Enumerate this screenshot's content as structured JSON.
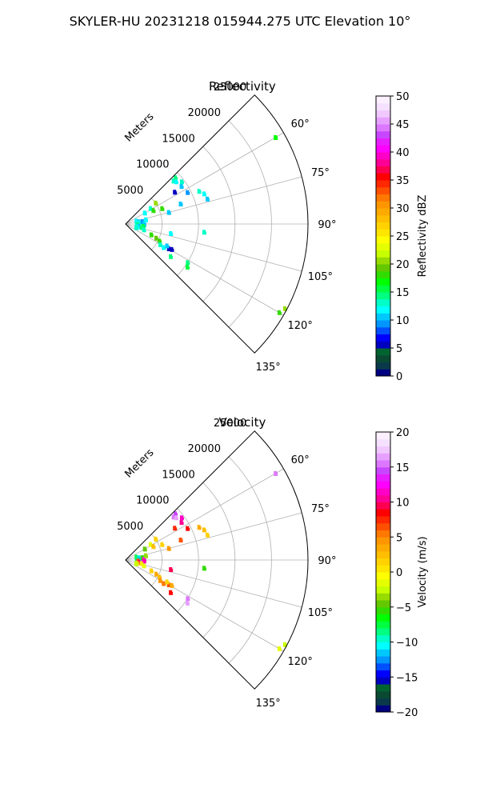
{
  "figure": {
    "suptitle": "SKYLER-HU  20231218  015944.275 UTC Elevation 10°"
  },
  "chart_data": [
    {
      "type": "scatter",
      "title": "Reflectivity",
      "range_label": "Meters",
      "radial_ticks": [
        "5000",
        "10000",
        "15000",
        "20000",
        "25000"
      ],
      "radial_values": [
        5000,
        10000,
        15000,
        20000,
        25000
      ],
      "angle_ticks": [
        "60°",
        "75°",
        "90°",
        "105°",
        "120°",
        "135°"
      ],
      "angle_values": [
        60,
        75,
        90,
        105,
        120,
        135
      ],
      "angle_range": [
        45,
        135
      ],
      "rmax": 25000,
      "grid": true,
      "colorbar": {
        "label": "Reflectivity dBZ",
        "ticks": [
          "0",
          "5",
          "10",
          "15",
          "20",
          "25",
          "30",
          "35",
          "40",
          "45",
          "50"
        ],
        "range": [
          0,
          50
        ],
        "bands": 40,
        "colors": [
          "#000080",
          "#0a3a4a",
          "#0a4a32",
          "#006430",
          "#0000c0",
          "#0000ff",
          "#0050ff",
          "#0096ff",
          "#00c8ff",
          "#00ffff",
          "#00ffc8",
          "#00ff80",
          "#00ff40",
          "#00ff00",
          "#32dc00",
          "#64c800",
          "#96dc00",
          "#c8ff00",
          "#e6ff00",
          "#ffff00",
          "#ffe600",
          "#ffd200",
          "#ffbe00",
          "#ffaa00",
          "#ff9600",
          "#ff7800",
          "#ff5000",
          "#ff2800",
          "#ff0000",
          "#ff0050",
          "#ff0096",
          "#ff00c8",
          "#ff00ff",
          "#e61eff",
          "#c846ff",
          "#dc78ff",
          "#e6a0ff",
          "#f0c8ff",
          "#f5e1ff",
          "#fbf0ff"
        ]
      },
      "points": [
        {
          "az": 58,
          "r": 4000,
          "v": 13
        },
        {
          "az": 60,
          "r": 3000,
          "v": 12
        },
        {
          "az": 55,
          "r": 5000,
          "v": 20
        },
        {
          "az": 48,
          "r": 8800,
          "v": 13
        },
        {
          "az": 47,
          "r": 9300,
          "v": 14
        },
        {
          "az": 50,
          "r": 9000,
          "v": 12
        },
        {
          "az": 53,
          "r": 9600,
          "v": 13
        },
        {
          "az": 56,
          "r": 9200,
          "v": 11
        },
        {
          "az": 57,
          "r": 8000,
          "v": 5
        },
        {
          "az": 63,
          "r": 9500,
          "v": 9
        },
        {
          "az": 66,
          "r": 11000,
          "v": 13
        },
        {
          "az": 70,
          "r": 8000,
          "v": 10
        },
        {
          "az": 69,
          "r": 11500,
          "v": 12
        },
        {
          "az": 73,
          "r": 11700,
          "v": 11
        },
        {
          "az": 60,
          "r": 23700,
          "v": 17
        },
        {
          "az": 64,
          "r": 4200,
          "v": 18
        },
        {
          "az": 67,
          "r": 5400,
          "v": 18
        },
        {
          "az": 75,
          "r": 6100,
          "v": 11
        },
        {
          "az": 96,
          "r": 10800,
          "v": 13
        },
        {
          "az": 75,
          "r": 1500,
          "v": 12
        },
        {
          "az": 80,
          "r": 1800,
          "v": 11
        },
        {
          "az": 85,
          "r": 1800,
          "v": 12
        },
        {
          "az": 90,
          "r": 1500,
          "v": 13
        },
        {
          "az": 95,
          "r": 1700,
          "v": 14
        },
        {
          "az": 100,
          "r": 1800,
          "v": 11
        },
        {
          "az": 105,
          "r": 1600,
          "v": 12
        },
        {
          "az": 110,
          "r": 1500,
          "v": 13
        },
        {
          "az": 82,
          "r": 2300,
          "v": 9
        },
        {
          "az": 88,
          "r": 2500,
          "v": 10
        },
        {
          "az": 93,
          "r": 2500,
          "v": 11
        },
        {
          "az": 98,
          "r": 2400,
          "v": 15
        },
        {
          "az": 103,
          "r": 2200,
          "v": 14
        },
        {
          "az": 78,
          "r": 2800,
          "v": 12
        },
        {
          "az": 108,
          "r": 2600,
          "v": 13
        },
        {
          "az": 113,
          "r": 3800,
          "v": 18
        },
        {
          "az": 115,
          "r": 4600,
          "v": 19
        },
        {
          "az": 117,
          "r": 5200,
          "v": 18
        },
        {
          "az": 121,
          "r": 5500,
          "v": 13
        },
        {
          "az": 122,
          "r": 6100,
          "v": 12
        },
        {
          "az": 120,
          "r": 6800,
          "v": 5
        },
        {
          "az": 119,
          "r": 7200,
          "v": 6
        },
        {
          "az": 118,
          "r": 6400,
          "v": 11
        },
        {
          "az": 126,
          "r": 7600,
          "v": 14
        },
        {
          "az": 122,
          "r": 10000,
          "v": 14
        },
        {
          "az": 125,
          "r": 10300,
          "v": 15
        },
        {
          "az": 118,
          "r": 24700,
          "v": 20
        },
        {
          "az": 120,
          "r": 24300,
          "v": 18
        },
        {
          "az": 102,
          "r": 6300,
          "v": 12
        }
      ]
    },
    {
      "type": "scatter",
      "title": "Velocity",
      "range_label": "Meters",
      "radial_ticks": [
        "5000",
        "10000",
        "15000",
        "20000",
        "25000"
      ],
      "radial_values": [
        5000,
        10000,
        15000,
        20000,
        25000
      ],
      "angle_ticks": [
        "60°",
        "75°",
        "90°",
        "105°",
        "120°",
        "135°"
      ],
      "angle_values": [
        60,
        75,
        90,
        105,
        120,
        135
      ],
      "angle_range": [
        45,
        135
      ],
      "rmax": 25000,
      "grid": true,
      "colorbar": {
        "label": "Velocity (m/s)",
        "ticks": [
          "−20",
          "−15",
          "−10",
          "−5",
          "0",
          "5",
          "10",
          "15",
          "20"
        ],
        "range": [
          -20,
          20
        ],
        "bands": 40,
        "colors": [
          "#000080",
          "#0a3a4a",
          "#0a4a32",
          "#006430",
          "#0000c0",
          "#0000ff",
          "#0050ff",
          "#0096ff",
          "#00c8ff",
          "#00ffff",
          "#00ffc8",
          "#00ff80",
          "#00ff40",
          "#00ff00",
          "#32dc00",
          "#64c800",
          "#96dc00",
          "#c8ff00",
          "#e6ff00",
          "#ffff00",
          "#ffe600",
          "#ffd200",
          "#ffbe00",
          "#ffaa00",
          "#ff9600",
          "#ff7800",
          "#ff5000",
          "#ff2800",
          "#ff0000",
          "#ff0050",
          "#ff0096",
          "#ff00c8",
          "#ff00ff",
          "#e61eff",
          "#c846ff",
          "#dc78ff",
          "#e6a0ff",
          "#f0c8ff",
          "#f5e1ff",
          "#fbf0ff"
        ]
      },
      "points": [
        {
          "az": 58,
          "r": 4000,
          "v": -2
        },
        {
          "az": 60,
          "r": 3000,
          "v": -5
        },
        {
          "az": 55,
          "r": 5000,
          "v": 1
        },
        {
          "az": 48,
          "r": 8800,
          "v": 15
        },
        {
          "az": 47,
          "r": 9300,
          "v": 14
        },
        {
          "az": 50,
          "r": 9000,
          "v": 16
        },
        {
          "az": 53,
          "r": 9600,
          "v": 11
        },
        {
          "az": 56,
          "r": 9200,
          "v": 10
        },
        {
          "az": 57,
          "r": 8000,
          "v": 7
        },
        {
          "az": 63,
          "r": 9500,
          "v": 8
        },
        {
          "az": 66,
          "r": 11000,
          "v": 3
        },
        {
          "az": 70,
          "r": 8000,
          "v": 6
        },
        {
          "az": 69,
          "r": 11500,
          "v": 2
        },
        {
          "az": 73,
          "r": 11700,
          "v": 1
        },
        {
          "az": 60,
          "r": 23700,
          "v": 15
        },
        {
          "az": 64,
          "r": 4200,
          "v": 2
        },
        {
          "az": 67,
          "r": 5400,
          "v": 1
        },
        {
          "az": 75,
          "r": 6100,
          "v": 4
        },
        {
          "az": 96,
          "r": 10800,
          "v": -6
        },
        {
          "az": 75,
          "r": 1500,
          "v": -8
        },
        {
          "az": 80,
          "r": 1800,
          "v": -10
        },
        {
          "az": 85,
          "r": 1800,
          "v": -12
        },
        {
          "az": 90,
          "r": 1500,
          "v": -9
        },
        {
          "az": 95,
          "r": 1700,
          "v": 6
        },
        {
          "az": 100,
          "r": 1800,
          "v": 9
        },
        {
          "az": 105,
          "r": 1600,
          "v": 2
        },
        {
          "az": 110,
          "r": 1500,
          "v": -3
        },
        {
          "az": 82,
          "r": 2300,
          "v": -6
        },
        {
          "az": 88,
          "r": 2500,
          "v": 12
        },
        {
          "az": 93,
          "r": 2500,
          "v": 10
        },
        {
          "az": 98,
          "r": 2400,
          "v": 11
        },
        {
          "az": 103,
          "r": 2200,
          "v": 0
        },
        {
          "az": 78,
          "r": 2800,
          "v": -4
        },
        {
          "az": 108,
          "r": 2600,
          "v": -2
        },
        {
          "az": 113,
          "r": 3800,
          "v": 1
        },
        {
          "az": 115,
          "r": 4600,
          "v": 3
        },
        {
          "az": 117,
          "r": 5200,
          "v": 2
        },
        {
          "az": 121,
          "r": 5500,
          "v": 4
        },
        {
          "az": 122,
          "r": 6100,
          "v": 5
        },
        {
          "az": 120,
          "r": 6800,
          "v": 6
        },
        {
          "az": 119,
          "r": 7200,
          "v": 3
        },
        {
          "az": 118,
          "r": 6400,
          "v": 1
        },
        {
          "az": 126,
          "r": 7600,
          "v": 8
        },
        {
          "az": 122,
          "r": 10000,
          "v": 15
        },
        {
          "az": 125,
          "r": 10300,
          "v": 16
        },
        {
          "az": 118,
          "r": 24700,
          "v": -3
        },
        {
          "az": 120,
          "r": 24300,
          "v": -2
        },
        {
          "az": 102,
          "r": 6300,
          "v": 9
        }
      ]
    }
  ]
}
